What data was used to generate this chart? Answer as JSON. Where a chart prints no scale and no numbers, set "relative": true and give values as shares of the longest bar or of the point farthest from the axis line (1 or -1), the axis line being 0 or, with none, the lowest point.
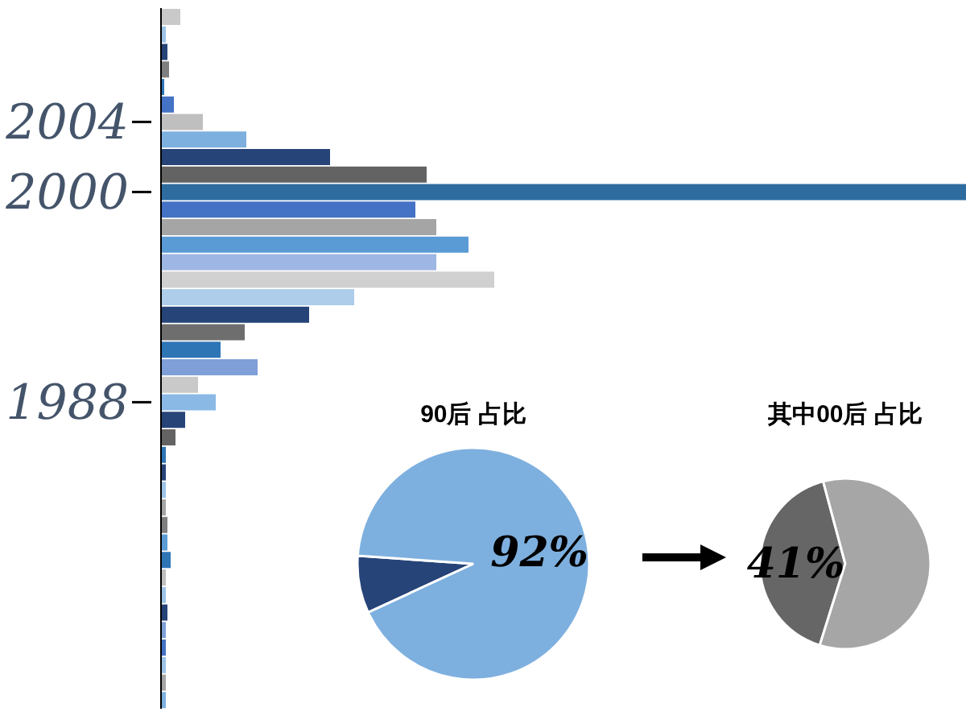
{
  "chart_data": [
    {
      "type": "bar",
      "orientation": "horizontal",
      "relative": true,
      "categories": [
        null,
        null,
        null,
        null,
        null,
        null,
        "2004",
        null,
        null,
        null,
        "2000",
        null,
        null,
        null,
        null,
        null,
        null,
        null,
        null,
        null,
        null,
        null,
        "1988",
        null,
        null,
        null,
        null,
        null,
        null,
        null,
        null,
        null,
        null,
        null,
        null,
        null,
        null,
        null,
        null,
        null
      ],
      "values": [
        0.024,
        0.006,
        0.008,
        0.01,
        0.004,
        0.016,
        0.052,
        0.106,
        0.21,
        0.33,
        1,
        0.316,
        0.342,
        0.382,
        0.342,
        0.414,
        0.24,
        0.184,
        0.104,
        0.074,
        0.12,
        0.046,
        0.068,
        0.03,
        0.018,
        0.006,
        0.006,
        0.006,
        0.006,
        0.008,
        0.008,
        0.012,
        0.006,
        0.006,
        0.008,
        0.006,
        0.006,
        0.006,
        0.006,
        0.006
      ],
      "colors": [
        "#c9c9c9",
        "#9dc3e6",
        "#264478",
        "#7f7f7f",
        "#2e75b6",
        "#4472c4",
        "#bfbfbf",
        "#7eb0df",
        "#264478",
        "#636363",
        "#2e6ca0",
        "#4472c4",
        "#a5a5a5",
        "#5b9bd5",
        "#9eb6e3",
        "#d0d0d0",
        "#adcdea",
        "#264478",
        "#6e6e6e",
        "#2e75b6",
        "#7f9fd8",
        "#c9c9c9",
        "#8ab9e6",
        "#264478",
        "#636363",
        "#2e75b6",
        "#264478",
        "#9dc3e6",
        "#a5a5a5",
        "#7f7f7f",
        "#5b9bd5",
        "#2e75b6",
        "#bfbfbf",
        "#9dc3e6",
        "#264478",
        "#7f9fd8",
        "#4472c4",
        "#9dc3e6",
        "#a5a5a5",
        "#7eb0df"
      ],
      "legend": false
    },
    {
      "type": "pie",
      "title": "90后 占比",
      "categories": [
        null,
        null
      ],
      "values": [
        8,
        92
      ],
      "colors": [
        "#264478",
        "#7eb0df"
      ],
      "value_labels": [
        null,
        "92%"
      ],
      "legend": false
    },
    {
      "type": "pie",
      "title": "其中00后 占比",
      "categories": [
        null,
        null
      ],
      "values": [
        41,
        59
      ],
      "colors": [
        "#666666",
        "#a6a6a6"
      ],
      "value_labels": [
        "41%",
        null
      ],
      "legend": false
    }
  ]
}
